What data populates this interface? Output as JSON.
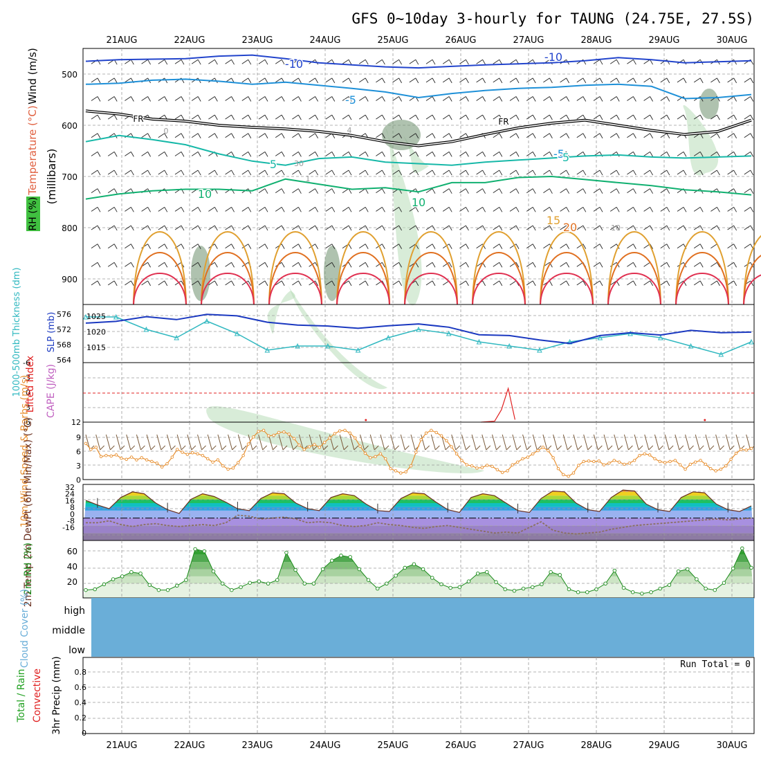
{
  "title": "GFS 0~10day 3-hourly for TAUNG (24.75E, 27.5S)",
  "dates": [
    "21AUG",
    "22AUG",
    "23AUG",
    "24AUG",
    "25AUG",
    "26AUG",
    "27AUG",
    "28AUG",
    "29AUG",
    "30AUG"
  ],
  "colors": {
    "grid": "#9a9a9a",
    "temp_cold": "#2244cc",
    "temp_cool": "#1e90d8",
    "temp_mild": "#16b8a8",
    "temp_warm": "#10b070",
    "temp_hot": "#e0a030",
    "temp_hotter": "#e07020",
    "temp_hottest": "#e03050",
    "freezing": "#111111",
    "rh": "#b8dcb8",
    "slp": "#1a38c0",
    "thickness": "#30b8c0",
    "lifted": "#e02020",
    "cape": "#c060c0",
    "wind_speed": "#e89030",
    "barb": "#7a5a3a",
    "dewpoint": "#8a7060",
    "rh2m": "#1a8a1a",
    "cloud": "#6aaed8",
    "precip_total": "#20a020",
    "precip_conv": "#e02020"
  },
  "chart_data": [
    {
      "type": "contour",
      "panel": "upper-air",
      "ylabel": "(millibars)",
      "legend": [
        "Wind (m/s)",
        "Temperature (°C)",
        "RH (%)"
      ],
      "y_ticks": [
        500,
        600,
        700,
        800,
        900
      ],
      "ylim": [
        1000,
        450
      ],
      "contour_labels": {
        "temperature": [
          "-10",
          "-10",
          "-5",
          "-5",
          "FR",
          "FR",
          "5",
          "5",
          "10",
          "10",
          "15",
          "20"
        ],
        "rh": [
          "0",
          "4",
          "30",
          "1",
          "10"
        ]
      },
      "isotherms": [
        {
          "level": -10,
          "p": [
            475,
            472,
            471,
            470,
            465,
            463,
            470,
            478,
            482,
            486,
            488,
            485,
            482,
            480,
            478,
            474,
            468,
            472,
            478,
            476,
            474
          ]
        },
        {
          "level": -5,
          "p": [
            520,
            518,
            512,
            510,
            514,
            520,
            516,
            522,
            528,
            535,
            546,
            538,
            532,
            528,
            526,
            522,
            520,
            524,
            548,
            546,
            540
          ]
        },
        {
          "level": 0,
          "p": [
            572,
            578,
            588,
            592,
            600,
            604,
            607,
            612,
            620,
            632,
            640,
            632,
            618,
            605,
            596,
            590,
            600,
            610,
            618,
            612,
            590
          ]
        },
        {
          "level": 5,
          "p": [
            632,
            620,
            628,
            638,
            656,
            670,
            678,
            665,
            662,
            672,
            675,
            678,
            672,
            668,
            664,
            660,
            658,
            662,
            664,
            662,
            660
          ]
        },
        {
          "level": 10,
          "p": [
            744,
            734,
            728,
            725,
            725,
            728,
            705,
            715,
            725,
            722,
            730,
            712,
            712,
            702,
            700,
            706,
            712,
            718,
            726,
            730,
            736
          ]
        }
      ]
    },
    {
      "type": "line",
      "panel": "slp-thickness",
      "ylabel_left": "1000-500mb Thickness (dm)",
      "ylabel_right": "SLP (mb)",
      "left_ticks": [
        "576",
        "572",
        "568",
        "564"
      ],
      "right_ticks": [
        "1025",
        "1020",
        "1015"
      ],
      "series": [
        {
          "name": "SLP (mb)",
          "ylim": [
            1010,
            1030
          ],
          "values": [
            1023.6,
            1024.2,
            1025.8,
            1024.8,
            1026.6,
            1026.1,
            1023.9,
            1022.9,
            1022.6,
            1021.8,
            1022.7,
            1023.3,
            1022.2,
            1019.6,
            1019.3,
            1017.8,
            1016.6,
            1019.3,
            1020.3,
            1019.5,
            1021.1,
            1020.3,
            1020.5
          ]
        },
        {
          "name": "1000-500mb Thickness (dm)",
          "ylim": [
            564,
            578
          ],
          "values": [
            575,
            575,
            572,
            570,
            574,
            571,
            567,
            568,
            568,
            567,
            570,
            572,
            571,
            569,
            568,
            567,
            569,
            570,
            571,
            570,
            568,
            566,
            569
          ]
        }
      ]
    },
    {
      "type": "line",
      "panel": "lifted-cape",
      "ylabel": "Lifted Index",
      "ylabel2": "CAPE (J/kg)",
      "y_ticks": [
        "-6",
        "-3",
        "0",
        "3",
        "6"
      ],
      "right_tick": "12",
      "ylim": [
        6,
        -6
      ],
      "series": [
        {
          "name": "Lifted Index",
          "x_day": [
            5.3,
            5.5,
            5.6,
            5.7,
            5.8
          ],
          "values": [
            6,
            5.8,
            3.5,
            -0.8,
            5.5
          ]
        }
      ]
    },
    {
      "type": "line",
      "panel": "10m-wind",
      "ylabel": "10m Wind Speed & Barbs (m/s)",
      "y_ticks": [
        "9",
        "6",
        "3",
        "0"
      ],
      "ylim": [
        0,
        10.5
      ],
      "series": [
        {
          "name": "10m Wind Speed",
          "values": [
            6.6,
            5.5,
            5.9,
            4.2,
            4.4,
            4.3,
            4.5,
            3.9,
            3.7,
            4.1,
            3.6,
            4.0,
            3.6,
            3.3,
            3.0,
            2.3,
            2.9,
            4.1,
            5.5,
            5.0,
            4.6,
            4.9,
            4.7,
            4.4,
            3.8,
            3.2,
            3.6,
            2.5,
            1.9,
            2.1,
            3.1,
            4.4,
            6.5,
            7.8,
            8.8,
            9.0,
            8.0,
            8.1,
            8.6,
            8.7,
            8.3,
            7.5,
            6.3,
            5.5,
            6.0,
            6.4,
            5.9,
            6.8,
            7.6,
            8.4,
            8.9,
            9.0,
            8.5,
            7.6,
            6.1,
            4.8,
            4.0,
            4.2,
            4.7,
            3.8,
            2.0,
            1.6,
            1.2,
            1.4,
            2.5,
            5.0,
            7.3,
            8.5,
            9.0,
            8.6,
            8.0,
            7.1,
            6.0,
            4.7,
            3.5,
            2.7,
            2.5,
            2.1,
            2.2,
            2.6,
            2.4,
            1.8,
            1.3,
            1.6,
            2.7,
            3.2,
            3.8,
            4.1,
            4.7,
            5.3,
            5.9,
            5.3,
            4.0,
            2.0,
            0.9,
            0.6,
            1.2,
            2.6,
            3.3,
            3.4,
            3.3,
            3.4,
            2.7,
            3.0,
            3.5,
            3.2,
            2.8,
            3.0,
            3.5,
            4.4,
            4.7,
            4.5,
            3.8,
            3.3,
            3.1,
            3.3,
            3.5,
            2.7,
            1.9,
            2.8,
            3.2,
            3.5,
            2.8,
            2.0,
            1.6,
            1.9,
            2.5,
            3.7,
            4.8,
            5.5,
            5.4,
            5.7
          ]
        }
      ]
    },
    {
      "type": "area",
      "panel": "2m-temp",
      "ylabel": "2m Temp 2m DewPt (6hr Min/Max) (°C)",
      "y_ticks": [
        "32",
        "24",
        "16",
        "8",
        "0",
        "-8",
        "-16"
      ],
      "ylim": [
        -24,
        36
      ],
      "series": [
        {
          "name": "2m Temp",
          "values": [
            19,
            14,
            10,
            22,
            28,
            26,
            16,
            9,
            5,
            20,
            26,
            23,
            17,
            10,
            8,
            21,
            27,
            26,
            16,
            10,
            8,
            22,
            26,
            24,
            15,
            8,
            7,
            21,
            27,
            26,
            17,
            9,
            6,
            22,
            26,
            24,
            16,
            8,
            6,
            21,
            29,
            28,
            16,
            9,
            7,
            22,
            30,
            29,
            15,
            9,
            7,
            22,
            28,
            27,
            15,
            9,
            7,
            13
          ]
        },
        {
          "name": "2m DewPt",
          "values": [
            -5,
            -5,
            -3,
            -7,
            -9,
            -7,
            -6,
            -8,
            -9,
            -8,
            -7,
            -8,
            -5,
            3,
            2,
            -1,
            0,
            1,
            -1,
            -5,
            -4,
            -5,
            -8,
            -9,
            -8,
            -5,
            -7,
            -8,
            -10,
            -11,
            -9,
            -8,
            -10,
            -12,
            -14,
            -16,
            -15,
            -16,
            -10,
            -4,
            -13,
            -16,
            -17,
            -16,
            -15,
            -12,
            -10,
            -8,
            -7,
            -6,
            -5,
            -4,
            -3,
            -2,
            -1,
            -2,
            -1,
            0
          ]
        }
      ]
    },
    {
      "type": "area",
      "panel": "2m-rh",
      "ylabel": "2m RH (%)",
      "y_ticks": [
        "60",
        "40",
        "20"
      ],
      "ylim": [
        0,
        80
      ],
      "series": [
        {
          "name": "2m RH",
          "values": [
            11,
            12,
            19,
            26,
            30,
            36,
            34,
            18,
            11,
            11,
            17,
            25,
            68,
            65,
            37,
            20,
            11,
            15,
            21,
            23,
            20,
            25,
            63,
            39,
            20,
            20,
            40,
            52,
            59,
            57,
            40,
            25,
            13,
            20,
            31,
            42,
            47,
            40,
            28,
            19,
            14,
            15,
            23,
            34,
            36,
            22,
            12,
            10,
            13,
            15,
            19,
            36,
            32,
            12,
            8,
            8,
            12,
            20,
            38,
            14,
            8,
            6,
            8,
            13,
            18,
            37,
            40,
            26,
            13,
            11,
            21,
            41,
            69,
            42
          ]
        }
      ]
    },
    {
      "type": "bar",
      "panel": "cloud-cover",
      "ylabel": "Cloud Cover (%)",
      "categories": [
        "high",
        "middle",
        "low"
      ],
      "values": [
        100,
        100,
        100
      ]
    },
    {
      "type": "bar",
      "panel": "precip",
      "ylabel": "3hr Precip (mm)",
      "legend": [
        "Total / Rain",
        "Convective"
      ],
      "run_total": "Run Total = 0",
      "y_ticks": [
        "0.8",
        "0.6",
        "0.4",
        "0.2",
        "0"
      ],
      "ylim": [
        0,
        1
      ],
      "values": []
    }
  ]
}
